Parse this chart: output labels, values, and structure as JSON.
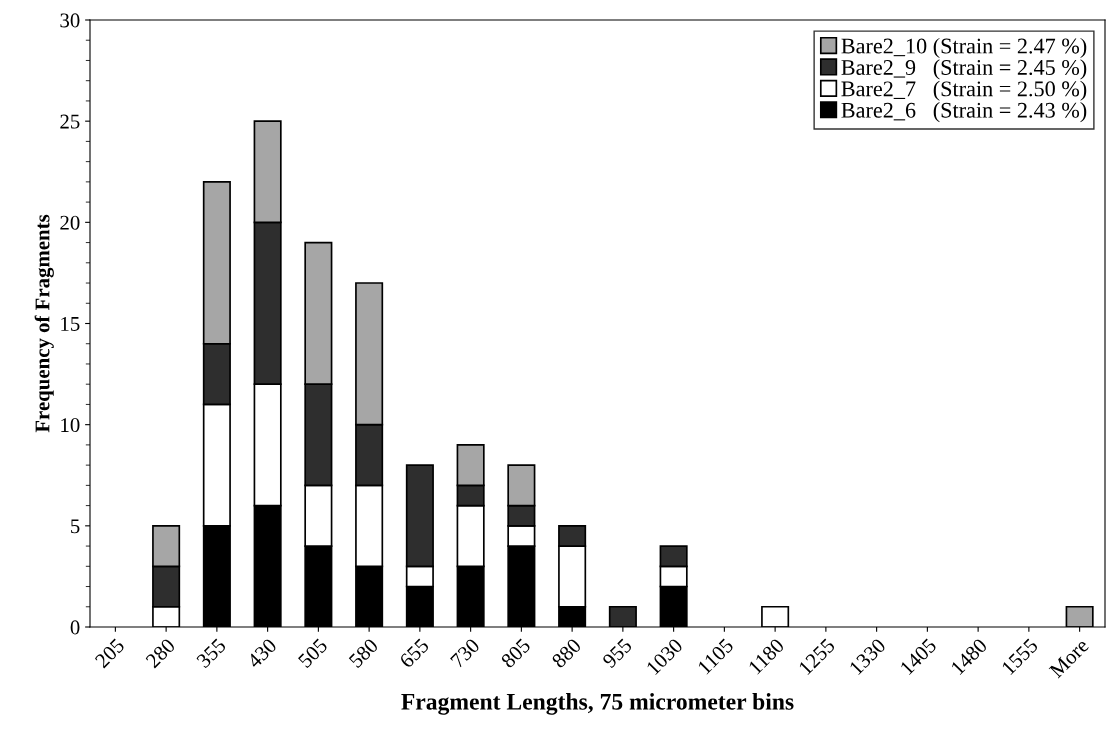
{
  "chart_data": {
    "type": "bar",
    "stacked": true,
    "xlabel": "Fragment Lengths, 75 micrometer bins",
    "ylabel": "Frequency of Fragments",
    "categories": [
      "205",
      "280",
      "355",
      "430",
      "505",
      "580",
      "655",
      "730",
      "805",
      "880",
      "955",
      "1030",
      "1105",
      "1180",
      "1255",
      "1330",
      "1405",
      "1480",
      "1555",
      "More"
    ],
    "series": [
      {
        "name": "Bare2_6   (Strain = 2.43 %)",
        "color": "#000000",
        "values": [
          0,
          0,
          5,
          6,
          4,
          3,
          2,
          3,
          4,
          1,
          0,
          2,
          0,
          0,
          0,
          0,
          0,
          0,
          0,
          0
        ]
      },
      {
        "name": "Bare2_7   (Strain = 2.50 %)",
        "color": "#ffffff",
        "values": [
          0,
          1,
          6,
          6,
          3,
          4,
          1,
          3,
          1,
          3,
          0,
          1,
          0,
          1,
          0,
          0,
          0,
          0,
          0,
          0
        ]
      },
      {
        "name": "Bare2_9   (Strain = 2.45 %)",
        "color": "#2e2e2e",
        "values": [
          0,
          2,
          3,
          8,
          5,
          3,
          5,
          1,
          1,
          1,
          1,
          1,
          0,
          0,
          0,
          0,
          0,
          0,
          0,
          0
        ]
      },
      {
        "name": "Bare2_10 (Strain = 2.47 %)",
        "color": "#a6a6a6",
        "values": [
          0,
          2,
          8,
          5,
          7,
          7,
          0,
          2,
          2,
          0,
          0,
          0,
          0,
          0,
          0,
          0,
          0,
          0,
          0,
          1
        ]
      }
    ],
    "ylim": [
      0,
      30
    ],
    "yticks": [
      0,
      5,
      10,
      15,
      20,
      25,
      30
    ],
    "grid": false,
    "legend": "top right"
  }
}
